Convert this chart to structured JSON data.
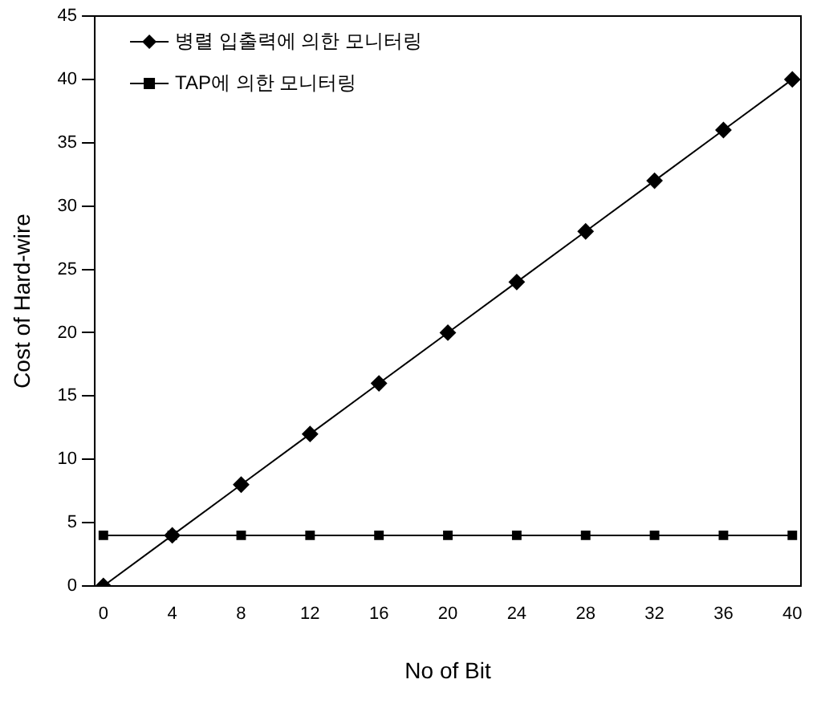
{
  "chart_data": {
    "type": "line",
    "xlabel": "No of Bit",
    "ylabel": "Cost of Hard-wire",
    "x": [
      0,
      4,
      8,
      12,
      16,
      20,
      24,
      28,
      32,
      36,
      40
    ],
    "series": [
      {
        "name": "병렬 입출력에 의한 모니터링",
        "color": "#000000",
        "marker": "diamond",
        "values": [
          0,
          4,
          8,
          12,
          16,
          20,
          24,
          28,
          32,
          36,
          40
        ]
      },
      {
        "name": "TAP에 의한 모니터링",
        "color": "#000000",
        "marker": "square",
        "values": [
          4,
          4,
          4,
          4,
          4,
          4,
          4,
          4,
          4,
          4,
          4
        ]
      }
    ],
    "xlim": [
      -0.5,
      40.5
    ],
    "xticks": [
      0,
      4,
      8,
      12,
      16,
      20,
      24,
      28,
      32,
      36,
      40
    ],
    "ylim": [
      0,
      45
    ],
    "yticks": [
      0,
      5,
      10,
      15,
      20,
      25,
      30,
      35,
      40,
      45
    ],
    "grid": false,
    "legend": "top left",
    "line_style": "solid"
  }
}
